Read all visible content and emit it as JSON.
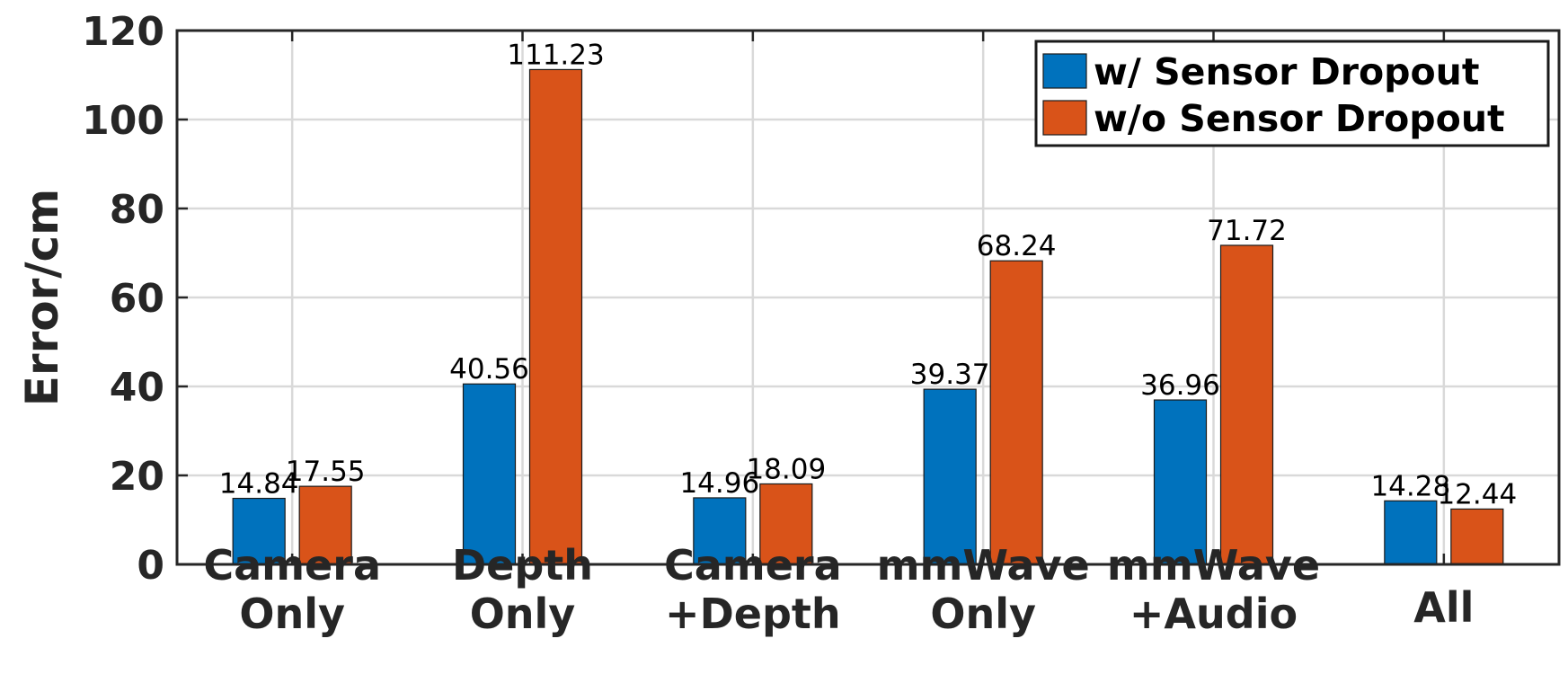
{
  "chart_data": {
    "type": "bar",
    "title": "",
    "xlabel": "",
    "ylabel": "Error/cm",
    "ylim": [
      0,
      120
    ],
    "yticks": [
      0,
      20,
      40,
      60,
      80,
      100,
      120
    ],
    "grid": true,
    "legend_position": "top-right",
    "categories": [
      [
        "Camera",
        "Only"
      ],
      [
        "Depth",
        "Only"
      ],
      [
        "Camera",
        "+Depth"
      ],
      [
        "mmWave",
        "Only"
      ],
      [
        "mmWave",
        "+Audio"
      ],
      [
        "All"
      ]
    ],
    "series": [
      {
        "name": "w/ Sensor Dropout",
        "color": "#0072BD",
        "values": [
          14.84,
          40.56,
          14.96,
          39.37,
          36.96,
          14.28
        ],
        "labels": [
          "14.84",
          "40.56",
          "14.96",
          "39.37",
          "36.96",
          "14.28"
        ]
      },
      {
        "name": "w/o Sensor Dropout",
        "color": "#D95319",
        "values": [
          17.55,
          111.23,
          18.09,
          68.24,
          71.72,
          12.44
        ],
        "labels": [
          "17.55",
          "111.23",
          "18.09",
          "68.24",
          "71.72",
          "12.44"
        ]
      }
    ]
  }
}
